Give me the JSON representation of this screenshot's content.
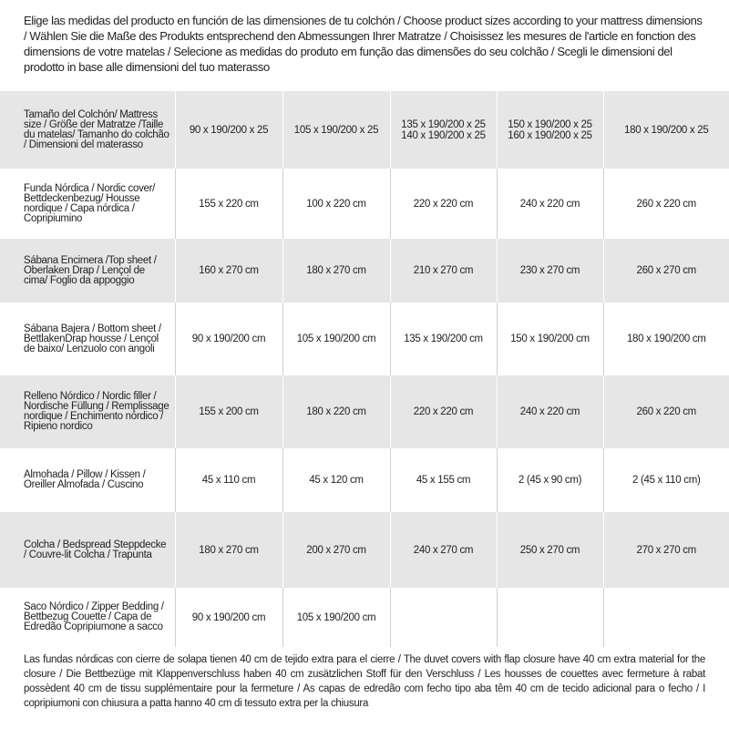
{
  "header": {
    "title": "Elige las medidas del producto en función de las dimensiones de tu colchón / Choose product sizes according to your mattress dimensions / Wählen Sie die Maße des Produkts entsprechend den Abmessungen Ihrer Matratze / Choisissez les mesures de l'article en fonction des dimensions de votre matelas / Selecione as medidas do produto em função das dimensões do seu colchão / Scegli le dimensioni del prodotto in base alle dimensioni del tuo materasso"
  },
  "table": {
    "rows": [
      [
        "Tamaño del Colchón/ Mattress size / Größe der Matratze /Taille du matelas/ Tamanho do colchão / Dimensioni del materasso",
        "90 x 190/200 x 25",
        "105 x 190/200 x 25",
        "135 x 190/200 x 25\n140 x 190/200 x 25",
        "150 x 190/200 x 25\n160 x 190/200 x 25",
        "180 x 190/200 x 25"
      ],
      [
        "Funda Nórdica / Nordic cover/ Bettdeckenbezug/ Housse nordique / Capa nórdica / Copripiumino",
        "155 x 220 cm",
        "100 x 220 cm",
        "220 x 220 cm",
        "240 x 220 cm",
        "260 x 220 cm"
      ],
      [
        "Sábana Encimera /Top sheet / Oberlaken Drap / Lençol de cima/ Foglio da appoggio",
        "160 x 270 cm",
        "180 x 270 cm",
        "210 x 270 cm",
        "230 x 270 cm",
        "260 x 270 cm"
      ],
      [
        "Sábana Bajera / Bottom sheet / BettlakenDrap housse / Lençol de baixo/ Lenzuolo con angoli",
        "90 x 190/200 cm",
        "105 x 190/200 cm",
        "135 x 190/200 cm",
        "150 x 190/200 cm",
        "180 x 190/200 cm"
      ],
      [
        "Relleno Nórdico / Nordic filler / Nordische Füllung / Remplissage nordique / Enchimento nórdico / Ripieno nordico",
        "155 x 200 cm",
        "180 x 220 cm",
        "220 x 220 cm",
        "240 x 220 cm",
        "260 x 220 cm"
      ],
      [
        "Almohada / Pillow / Kissen / Oreiller Almofada / Cuscino",
        "45 x 110 cm",
        "45 x 120 cm",
        "45 x 155 cm",
        "2 (45 x 90 cm)",
        "2 (45 x 110 cm)"
      ],
      [
        "Colcha / Bedspread Steppdecke / Couvre-lit Colcha / Trapunta",
        "180 x 270 cm",
        "200 x 270 cm",
        "240 x 270 cm",
        "250 x 270 cm",
        "270 x 270 cm"
      ],
      [
        "Saco Nórdico / Zipper Bedding / Bettbezug Couette / Capa de Edredão Copripiumone a sacco",
        "90 x 190/200 cm",
        "105 x 190/200 cm"
      ]
    ]
  },
  "footer": {
    "note": "Las fundas nórdicas con cierre de solapa tienen 40 cm de tejido extra para el cierre / The duvet covers with flap closure have 40 cm extra material for the closure / Die Bettbezüge mit Klappenverschluss haben 40 cm zusätzlichen Stoff für den Verschluss / Les housses de couettes avec fermeture à rabat possèdent 40 cm de tissu supplémentaire pour la fermeture / As capas de edredão com fecho tipo aba têm 40 cm de tecido adicional para o fecho / I copripiumoni con chiusura a patta hanno 40 cm di tessuto extra per la chiusura"
  }
}
